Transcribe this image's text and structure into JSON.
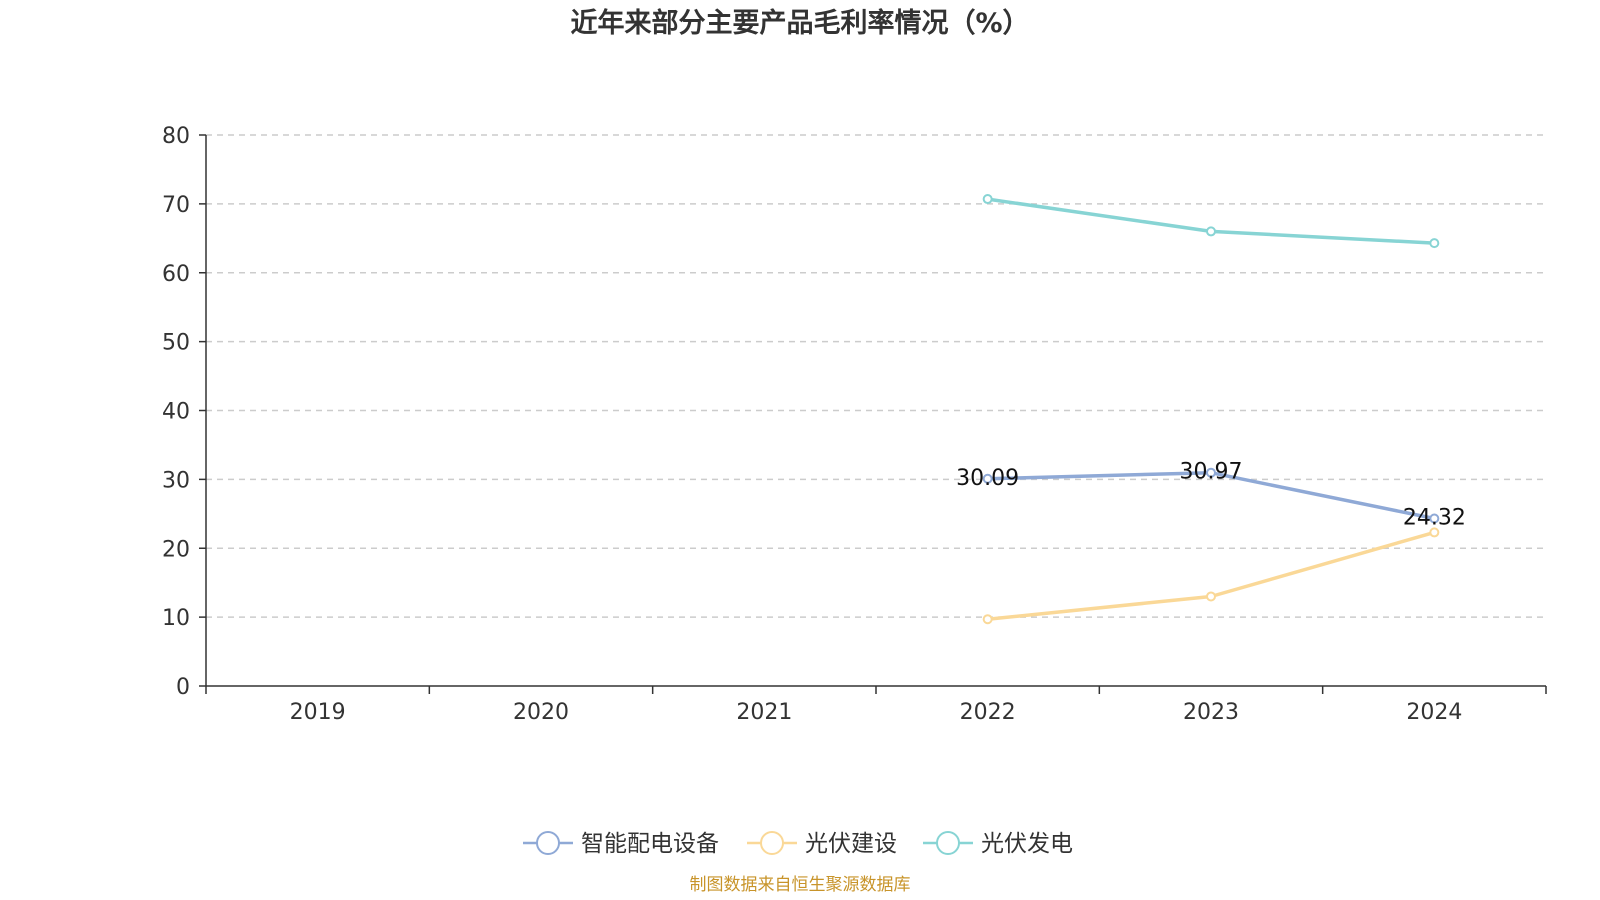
{
  "chart_data": {
    "type": "line",
    "title": "近年来部分主要产品毛利率情况（%）",
    "xlabel": "",
    "ylabel": "",
    "categories": [
      "2019",
      "2020",
      "2021",
      "2022",
      "2023",
      "2024"
    ],
    "ylim": [
      0,
      80
    ],
    "yticks": [
      0,
      10,
      20,
      30,
      40,
      50,
      60,
      70,
      80
    ],
    "grid": true,
    "legend_position": "bottom",
    "series": [
      {
        "name": "智能配电设备",
        "color": "#8fa9d6",
        "values": [
          null,
          null,
          null,
          30.09,
          30.97,
          24.32
        ],
        "data_labels": [
          "",
          "",
          "",
          "30.09",
          "30.97",
          "24.32"
        ]
      },
      {
        "name": "光伏建设",
        "color": "#fad897",
        "values": [
          null,
          null,
          null,
          9.7,
          13.0,
          22.3
        ],
        "data_labels": []
      },
      {
        "name": "光伏发电",
        "color": "#87d4d4",
        "values": [
          null,
          null,
          null,
          70.7,
          66.0,
          64.3
        ],
        "data_labels": []
      }
    ]
  },
  "source": {
    "text": "制图数据来自恒生聚源数据库",
    "color": "#c8942a"
  }
}
